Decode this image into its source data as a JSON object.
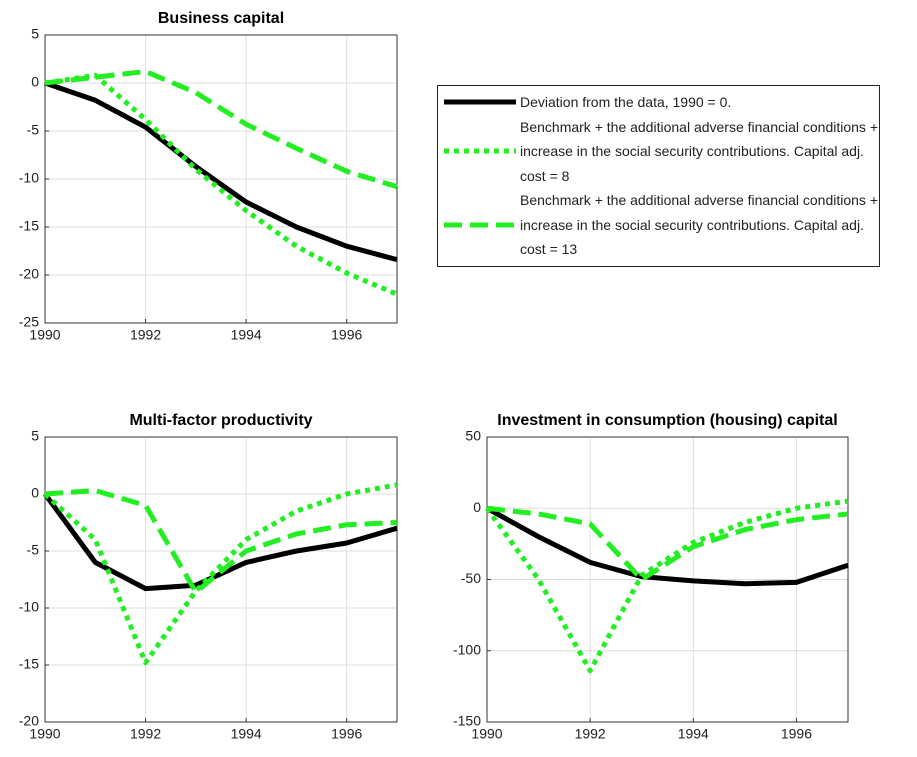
{
  "chart_data": [
    {
      "type": "line",
      "title": "Business capital",
      "x": [
        1990,
        1991,
        1992,
        1993,
        1994,
        1995,
        1996,
        1997
      ],
      "xlim": [
        1990,
        1997
      ],
      "xticks": [
        1990,
        1992,
        1994,
        1996
      ],
      "ylim": [
        -25,
        5
      ],
      "yticks": [
        5,
        0,
        -5,
        -10,
        -15,
        -20,
        -25
      ],
      "grid": true,
      "legend": "east",
      "series": [
        {
          "name": "Deviation from the data, 1990 = 0.",
          "color": "#000000",
          "line_style": "solid",
          "values": [
            0,
            -1.8,
            -4.6,
            -8.7,
            -12.4,
            -15.0,
            -17.0,
            -18.4
          ]
        },
        {
          "name": "Benchmark + the additional adverse financial conditions + increase in the social security contributions. Capital adj. cost = 8",
          "color": "#22ee22",
          "line_style": "dotted",
          "values": [
            0,
            0.8,
            -3.8,
            -9.0,
            -13.3,
            -17.0,
            -19.8,
            -22.0
          ]
        },
        {
          "name": "Benchmark + the additional adverse financial conditions + increase in the social security contributions. Capital adj. cost = 13",
          "color": "#22ee22",
          "line_style": "dashed",
          "values": [
            0,
            0.6,
            1.2,
            -1.0,
            -4.3,
            -6.8,
            -9.2,
            -10.8
          ]
        }
      ]
    },
    {
      "type": "line",
      "title": "Multi-factor productivity",
      "x": [
        1990,
        1991,
        1992,
        1993,
        1994,
        1995,
        1996,
        1997
      ],
      "xlim": [
        1990,
        1997
      ],
      "xticks": [
        1990,
        1992,
        1994,
        1996
      ],
      "ylim": [
        -20,
        5
      ],
      "yticks": [
        5,
        0,
        -5,
        -10,
        -15,
        -20
      ],
      "grid": true,
      "series": [
        {
          "color": "#000000",
          "line_style": "solid",
          "values": [
            0,
            -6.0,
            -8.3,
            -8.0,
            -6.0,
            -5.0,
            -4.3,
            -3.0
          ]
        },
        {
          "color": "#22ee22",
          "line_style": "dotted",
          "values": [
            0,
            -4.0,
            -14.8,
            -8.5,
            -4.0,
            -1.5,
            0,
            0.8
          ]
        },
        {
          "color": "#22ee22",
          "line_style": "dashed",
          "values": [
            0,
            0.3,
            -1.0,
            -8.6,
            -5.0,
            -3.5,
            -2.7,
            -2.5
          ]
        }
      ]
    },
    {
      "type": "line",
      "title": "Investment in consumption (housing) capital",
      "x": [
        1990,
        1991,
        1992,
        1993,
        1994,
        1995,
        1996,
        1997
      ],
      "xlim": [
        1990,
        1997
      ],
      "xticks": [
        1990,
        1992,
        1994,
        1996
      ],
      "ylim": [
        -150,
        50
      ],
      "yticks": [
        50,
        0,
        -50,
        -100,
        -150
      ],
      "grid": true,
      "series": [
        {
          "color": "#000000",
          "line_style": "solid",
          "values": [
            0,
            -20,
            -38,
            -48,
            -51,
            -53,
            -52,
            -40
          ]
        },
        {
          "color": "#22ee22",
          "line_style": "dotted",
          "values": [
            0,
            -50,
            -114,
            -47,
            -24,
            -10,
            0,
            5
          ]
        },
        {
          "color": "#22ee22",
          "line_style": "dashed",
          "values": [
            0,
            -4,
            -11,
            -50,
            -27,
            -15,
            -8,
            -4
          ]
        }
      ]
    }
  ]
}
